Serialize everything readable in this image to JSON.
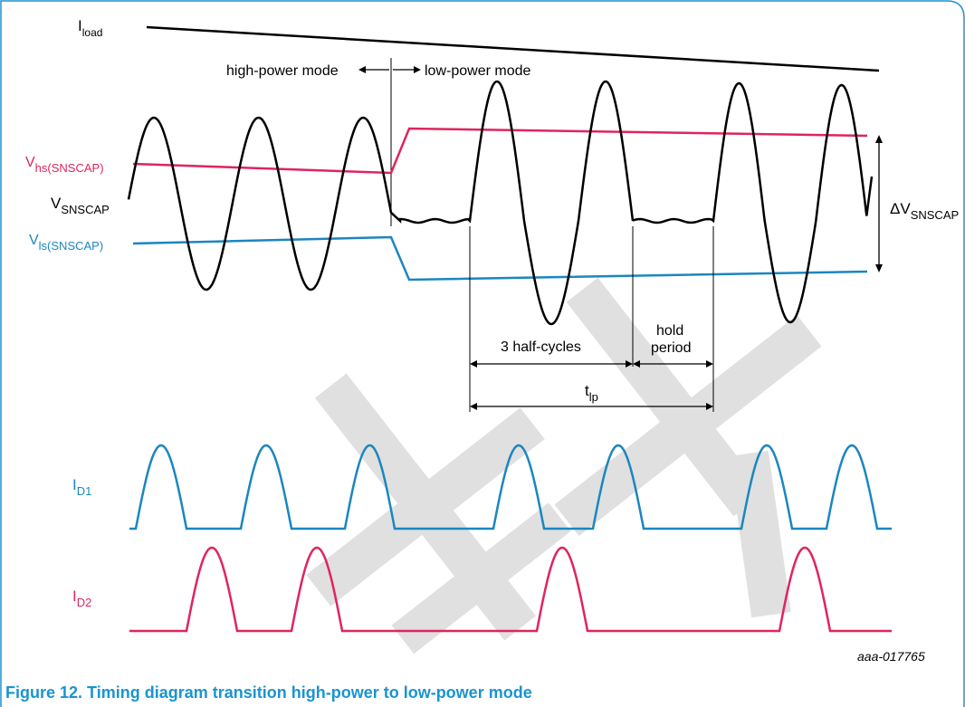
{
  "figure": {
    "caption": "Figure 12.  Timing diagram transition high-power to low-power mode",
    "ref_code": "aaa-017765",
    "watermark_glyphs": "芯片"
  },
  "labels": {
    "iload": {
      "main": "I",
      "sub": "load"
    },
    "vhs": {
      "main": "V",
      "sub": "hs(SNSCAP)"
    },
    "vsnscap": {
      "main": "V",
      "sub": "SNSCAP"
    },
    "vls": {
      "main": "V",
      "sub": "ls(SNSCAP)"
    },
    "delta_v": {
      "main": "ΔV",
      "sub": "SNSCAP"
    },
    "id1": {
      "main": "I",
      "sub": "D1"
    },
    "id2": {
      "main": "I",
      "sub": "D2"
    },
    "tlp": {
      "main": "t",
      "sub": "lp"
    },
    "high_power": "high-power mode",
    "low_power": "low-power mode",
    "half_cycles": "3 half-cycles",
    "hold_line1": "hold",
    "hold_line2": "period"
  },
  "colors": {
    "frame": "#1a94cf",
    "caption": "#1a94cf",
    "black": "#000000",
    "magenta": "#e0245e",
    "blue": "#1b86c0",
    "watermark": "#c8c8c8"
  }
}
